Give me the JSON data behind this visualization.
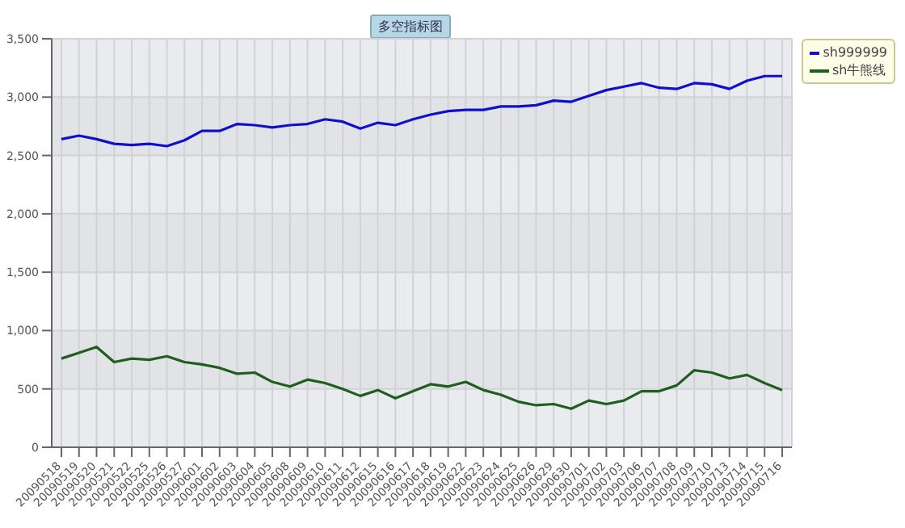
{
  "chart_data": {
    "type": "line",
    "title": "多空指标图",
    "categories": [
      "20090518",
      "20090519",
      "20090520",
      "20090521",
      "20090522",
      "20090525",
      "20090526",
      "20090527",
      "20090601",
      "20090602",
      "20090603",
      "20090604",
      "20090605",
      "20090608",
      "20090609",
      "20090610",
      "20090611",
      "20090612",
      "20090615",
      "20090616",
      "20090617",
      "20090618",
      "20090619",
      "20090622",
      "20090623",
      "20090624",
      "20090625",
      "20090626",
      "20090629",
      "20090630",
      "20090701",
      "20090702",
      "20090703",
      "20090706",
      "20090707",
      "20090708",
      "20090709",
      "20090710",
      "20090713",
      "20090714",
      "20090715",
      "20090716"
    ],
    "series": [
      {
        "name": "sh999999",
        "color": "#1010c8",
        "values": [
          2640,
          2670,
          2640,
          2600,
          2590,
          2600,
          2580,
          2630,
          2710,
          2710,
          2770,
          2760,
          2740,
          2760,
          2770,
          2810,
          2790,
          2730,
          2780,
          2760,
          2810,
          2850,
          2880,
          2890,
          2890,
          2920,
          2920,
          2930,
          2970,
          2960,
          3010,
          3060,
          3090,
          3120,
          3080,
          3070,
          3120,
          3110,
          3070,
          3140,
          3180,
          3180
        ]
      },
      {
        "name": "sh牛熊线",
        "color": "#1e5e1e",
        "values": [
          760,
          810,
          860,
          730,
          760,
          750,
          780,
          730,
          710,
          680,
          630,
          640,
          560,
          520,
          580,
          550,
          500,
          440,
          490,
          420,
          480,
          540,
          520,
          560,
          490,
          450,
          390,
          360,
          370,
          330,
          400,
          370,
          400,
          480,
          480,
          530,
          660,
          640,
          590,
          620,
          550,
          490
        ]
      }
    ],
    "ylim": [
      0,
      3500
    ],
    "yticks": [
      0,
      500,
      {
        "value": 1000,
        "label": "1,000"
      },
      {
        "value": 1500,
        "label": "1,500"
      },
      {
        "value": 2000,
        "label": "2,000"
      },
      {
        "value": 2500,
        "label": "2,500"
      },
      {
        "value": 3000,
        "label": "3,000"
      },
      {
        "value": 3500,
        "label": "3,500"
      }
    ],
    "grid": true,
    "legend": "top right",
    "marker": "none",
    "line_style": "solid"
  }
}
